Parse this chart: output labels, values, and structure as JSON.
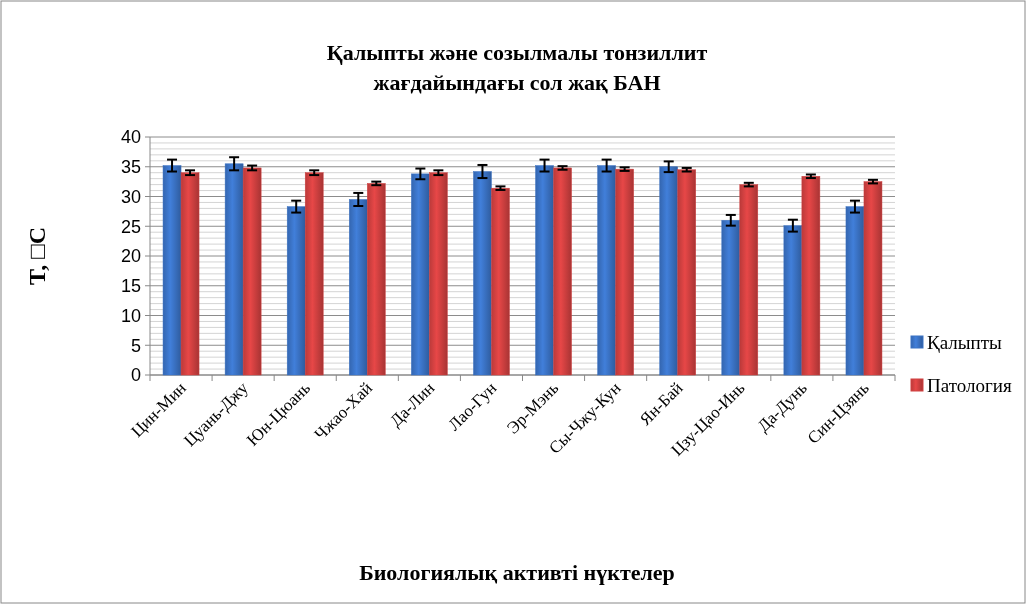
{
  "chart_data": {
    "type": "bar",
    "title": "Қалыпты және созылмалы тонзиллит  жағдайындағы сол жақ БАН",
    "xlabel": "Биологиялық активті нүктелер",
    "ylabel": "T, □C",
    "categories": [
      "Цин-Мин",
      "Цуань-Джу",
      "Юн-Цюань",
      "Чжао-Хай",
      "Да-Лин",
      "Лао-Гун",
      "Эр-Мэнь",
      "Сы-Чжу-Кун",
      "Ян-Бай",
      "Цзу-Цао-Инь",
      "Да-Дунь",
      "Син-Цзянь"
    ],
    "series": [
      {
        "name": "Қалыпты",
        "color": "#3a72c4",
        "values": [
          35.2,
          35.5,
          28.3,
          29.5,
          33.8,
          34.2,
          35.2,
          35.2,
          35.0,
          26.0,
          25.1,
          28.3
        ],
        "errors": [
          1.0,
          1.1,
          1.0,
          1.1,
          0.9,
          1.1,
          1.0,
          1.0,
          0.9,
          0.9,
          1.0,
          1.0
        ]
      },
      {
        "name": "Патология",
        "color": "#d04040",
        "values": [
          34.0,
          34.8,
          34.0,
          32.2,
          34.0,
          31.4,
          34.8,
          34.6,
          34.5,
          32.0,
          33.4,
          32.5
        ],
        "errors": [
          0.4,
          0.4,
          0.4,
          0.3,
          0.4,
          0.3,
          0.3,
          0.3,
          0.3,
          0.3,
          0.3,
          0.3
        ]
      }
    ],
    "ylim": [
      0,
      40
    ],
    "yticks": [
      0,
      5,
      10,
      15,
      20,
      25,
      30,
      35,
      40
    ],
    "grid": "y",
    "legend": "right"
  }
}
